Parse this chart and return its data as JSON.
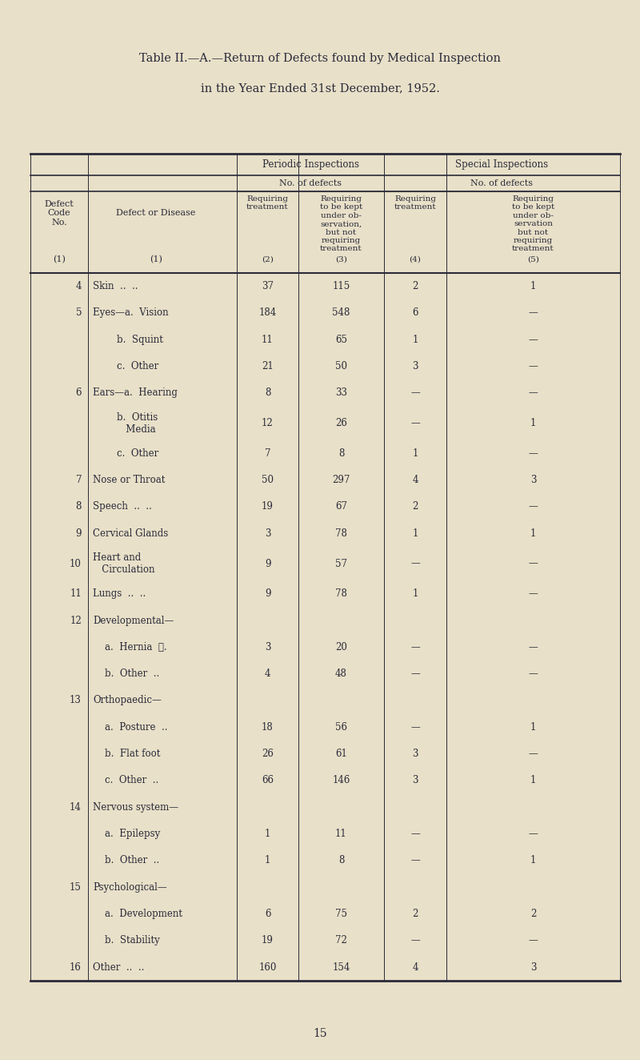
{
  "title_line1": "Table II.—A.—Return of Defects found by Medical Inspection in the Year Ended 31st December, 1952.",
  "title_line1_parts": [
    "T",
    "ABLE",
    " II.—A.—",
    "R",
    "ETURN",
    " ",
    "OF",
    " ",
    "D",
    "EFECTS",
    " ",
    "FOUND",
    " BY ",
    "M",
    "EDICAL"
  ],
  "title_line2": "Inspection in the Year Ended 31st December, 1952.",
  "bg_color": "#e8e0c8",
  "text_color": "#2a2a3a",
  "header_row1": [
    "Periodic Inspections",
    "Special Inspections"
  ],
  "header_row2": [
    "No. of defects",
    "No. of defects"
  ],
  "col_headers": [
    "Defect\nCode\nNo.",
    "Defect or Disease\n\n\n\n(1)",
    "Requiring\ntreatment\n\n(2)",
    "Requiring\nto be kept\nunder ob-\nservation,\nbut not\nrequiring\ntreatment\n(3)",
    "Requiring\ntreatment\n\n(4)",
    "Requiring\nto be kept\nunder ob-\nservation\nbut not\nrequiring\ntreatment\n(5)"
  ],
  "rows": [
    {
      "code": "4",
      "disease": "Skin  ..  ..",
      "c2": "37",
      "c3": "115",
      "c4": "2",
      "c5": "1"
    },
    {
      "code": "5",
      "disease": "Eyes—a.  Vision",
      "c2": "184",
      "c3": "548",
      "c4": "6",
      "c5": "—"
    },
    {
      "code": "",
      "disease": "        b.  Squint",
      "c2": "11",
      "c3": "65",
      "c4": "1",
      "c5": "—"
    },
    {
      "code": "",
      "disease": "        c.  Other",
      "c2": "21",
      "c3": "50",
      "c4": "3",
      "c5": "—"
    },
    {
      "code": "6",
      "disease": "Ears—a.  Hearing",
      "c2": "8",
      "c3": "33",
      "c4": "—",
      "c5": "—"
    },
    {
      "code": "",
      "disease": "        b.  Otitis\n           Media",
      "c2": "12",
      "c3": "26",
      "c4": "—",
      "c5": "1"
    },
    {
      "code": "",
      "disease": "        c.  Other",
      "c2": "7",
      "c3": "8",
      "c4": "1",
      "c5": "—"
    },
    {
      "code": "7",
      "disease": "Nose or Throat",
      "c2": "50",
      "c3": "297",
      "c4": "4",
      "c5": "3"
    },
    {
      "code": "8",
      "disease": "Speech  ..  ..",
      "c2": "19",
      "c3": "67",
      "c4": "2",
      "c5": "—"
    },
    {
      "code": "9",
      "disease": "Cervical Glands",
      "c2": "3",
      "c3": "78",
      "c4": "1",
      "c5": "1"
    },
    {
      "code": "10",
      "disease": "Heart and\n   Circulation",
      "c2": "9",
      "c3": "57",
      "c4": "—",
      "c5": "—"
    },
    {
      "code": "11",
      "disease": "Lungs  ..  ..",
      "c2": "9",
      "c3": "78",
      "c4": "1",
      "c5": "—"
    },
    {
      "code": "12",
      "disease": "Developmental—",
      "c2": "",
      "c3": "",
      "c4": "",
      "c5": ""
    },
    {
      "code": "",
      "disease": "    a.  Hernia  ∴.",
      "c2": "3",
      "c3": "20",
      "c4": "—",
      "c5": "—"
    },
    {
      "code": "",
      "disease": "    b.  Other  ..",
      "c2": "4",
      "c3": "48",
      "c4": "—",
      "c5": "—"
    },
    {
      "code": "13",
      "disease": "Orthopaedic—",
      "c2": "",
      "c3": "",
      "c4": "",
      "c5": ""
    },
    {
      "code": "",
      "disease": "    a.  Posture  ..",
      "c2": "18",
      "c3": "56",
      "c4": "—",
      "c5": "1"
    },
    {
      "code": "",
      "disease": "    b.  Flat foot",
      "c2": "26",
      "c3": "61",
      "c4": "3",
      "c5": "—"
    },
    {
      "code": "",
      "disease": "    c.  Other  ..",
      "c2": "66",
      "c3": "146",
      "c4": "3",
      "c5": "1"
    },
    {
      "code": "14",
      "disease": "Nervous system—",
      "c2": "",
      "c3": "",
      "c4": "",
      "c5": ""
    },
    {
      "code": "",
      "disease": "    a.  Epilepsy",
      "c2": "1",
      "c3": "11",
      "c4": "—",
      "c5": "—"
    },
    {
      "code": "",
      "disease": "    b.  Other  ..",
      "c2": "1",
      "c3": "8",
      "c4": "—",
      "c5": "1"
    },
    {
      "code": "15",
      "disease": "Psychological—",
      "c2": "",
      "c3": "",
      "c4": "",
      "c5": ""
    },
    {
      "code": "",
      "disease": "    a.  Development",
      "c2": "6",
      "c3": "75",
      "c4": "2",
      "c5": "2"
    },
    {
      "code": "",
      "disease": "    b.  Stability",
      "c2": "19",
      "c3": "72",
      "c4": "—",
      "c5": "—"
    },
    {
      "code": "16",
      "disease": "Other  ..  ..",
      "c2": "160",
      "c3": "154",
      "c4": "4",
      "c5": "3"
    }
  ],
  "page_number": "15"
}
